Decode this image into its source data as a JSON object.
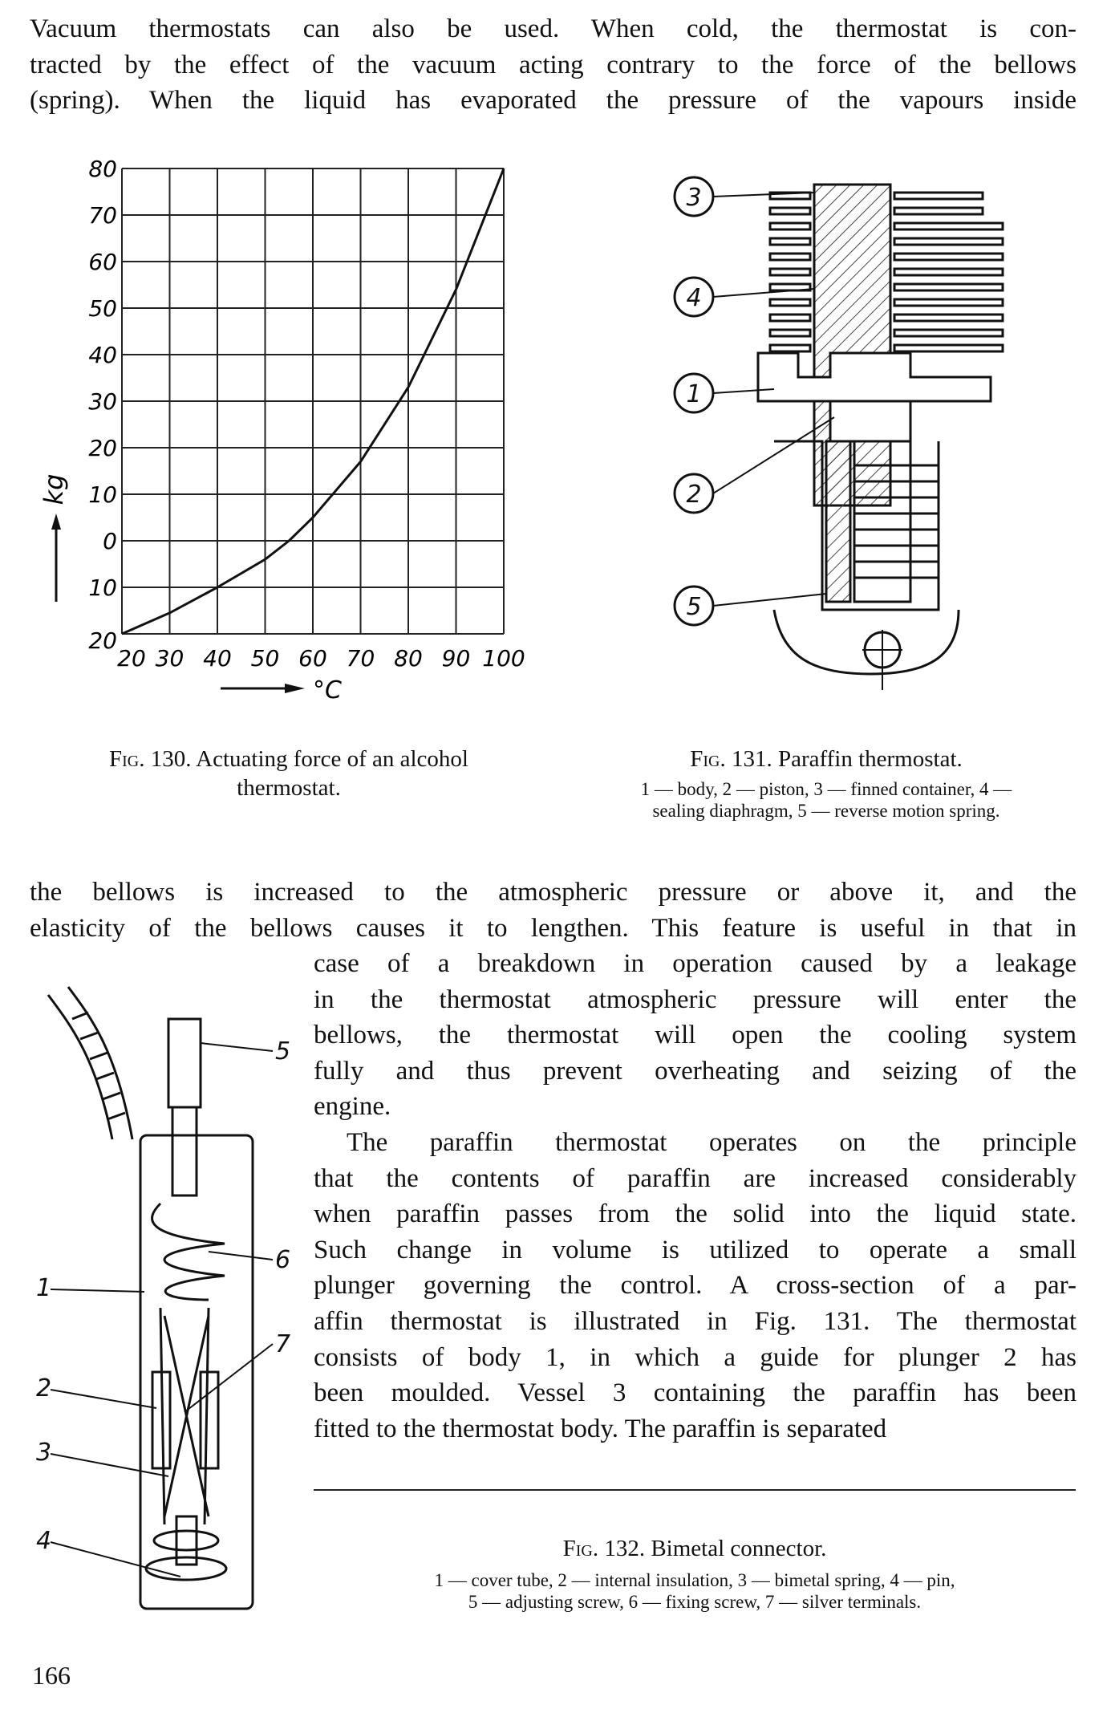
{
  "paragraph1": [
    "Vacuum thermostats can also be used. When cold, the thermostat is con-",
    "tracted by the effect of the vacuum acting contrary to the force of the bellows",
    "(spring). When the liquid has evaporated the pressure of the vapours inside"
  ],
  "paragraph2_full": [
    "the bellows is increased to the atmospheric pressure or above it, and the",
    "elasticity of the bellows causes it to lengthen. This feature is useful in that in"
  ],
  "paragraph2_column": [
    "case of a breakdown in operation caused by a leakage",
    "in the thermostat atmospheric pressure will enter the",
    "bellows, the thermostat will open the cooling system",
    "fully and thus prevent overheating and seizing of the",
    "engine."
  ],
  "paragraph3_column": [
    "The paraffin thermostat operates on the principle",
    "that the contents of paraffin are increased considerably",
    "when paraffin passes from the solid into the liquid state.",
    "Such change in volume is utilized to operate a small",
    "plunger governing the control. A cross-section of a par-",
    "affin thermostat is illustrated in Fig. 131. The thermostat",
    "consists of body 1, in which a guide for plunger 2 has",
    "been moulded. Vessel 3 containing the paraffin has been",
    "fitted to the thermostat body. The paraffin is separated"
  ],
  "fig130": {
    "caption_label": "Fig. 130.",
    "caption_text_1": "Actuating force of an alcohol",
    "caption_text_2": "thermostat."
  },
  "fig131": {
    "caption_label": "Fig. 131.",
    "caption_text": "Paraffin thermostat.",
    "legend_1": "1 — body, 2 — piston, 3 — finned container, 4 —",
    "legend_2": "sealing diaphragm, 5 — reverse motion spring.",
    "callouts": [
      "3",
      "4",
      "1",
      "2",
      "5"
    ]
  },
  "fig132": {
    "caption_label": "Fig. 132.",
    "caption_text": "Bimetal connector.",
    "legend_1": "1 — cover tube, 2 — internal insulation, 3 — bimetal spring, 4 — pin,",
    "legend_2": "5 — adjusting screw, 6 — fixing screw, 7 — silver terminals.",
    "callouts": [
      "5",
      "6",
      "1",
      "7",
      "2",
      "3",
      "4"
    ]
  },
  "page_number": "166",
  "chart_data": {
    "type": "line",
    "title": "",
    "xlabel": "°C",
    "ylabel": "kg",
    "x_ticks": [
      20,
      30,
      40,
      50,
      60,
      70,
      80,
      90,
      100
    ],
    "y_ticks": [
      -20,
      -10,
      0,
      10,
      20,
      30,
      40,
      50,
      60,
      70,
      80
    ],
    "y_tick_labels": [
      "20",
      "10",
      "0",
      "10",
      "20",
      "30",
      "40",
      "50",
      "60",
      "70",
      "80"
    ],
    "xlim": [
      20,
      100
    ],
    "ylim": [
      -20,
      80
    ],
    "grid": true,
    "x": [
      20,
      30,
      40,
      50,
      55,
      60,
      70,
      80,
      90,
      100
    ],
    "y": [
      -20,
      -15.5,
      -10,
      -4,
      0,
      5,
      17,
      33,
      54,
      80
    ]
  }
}
